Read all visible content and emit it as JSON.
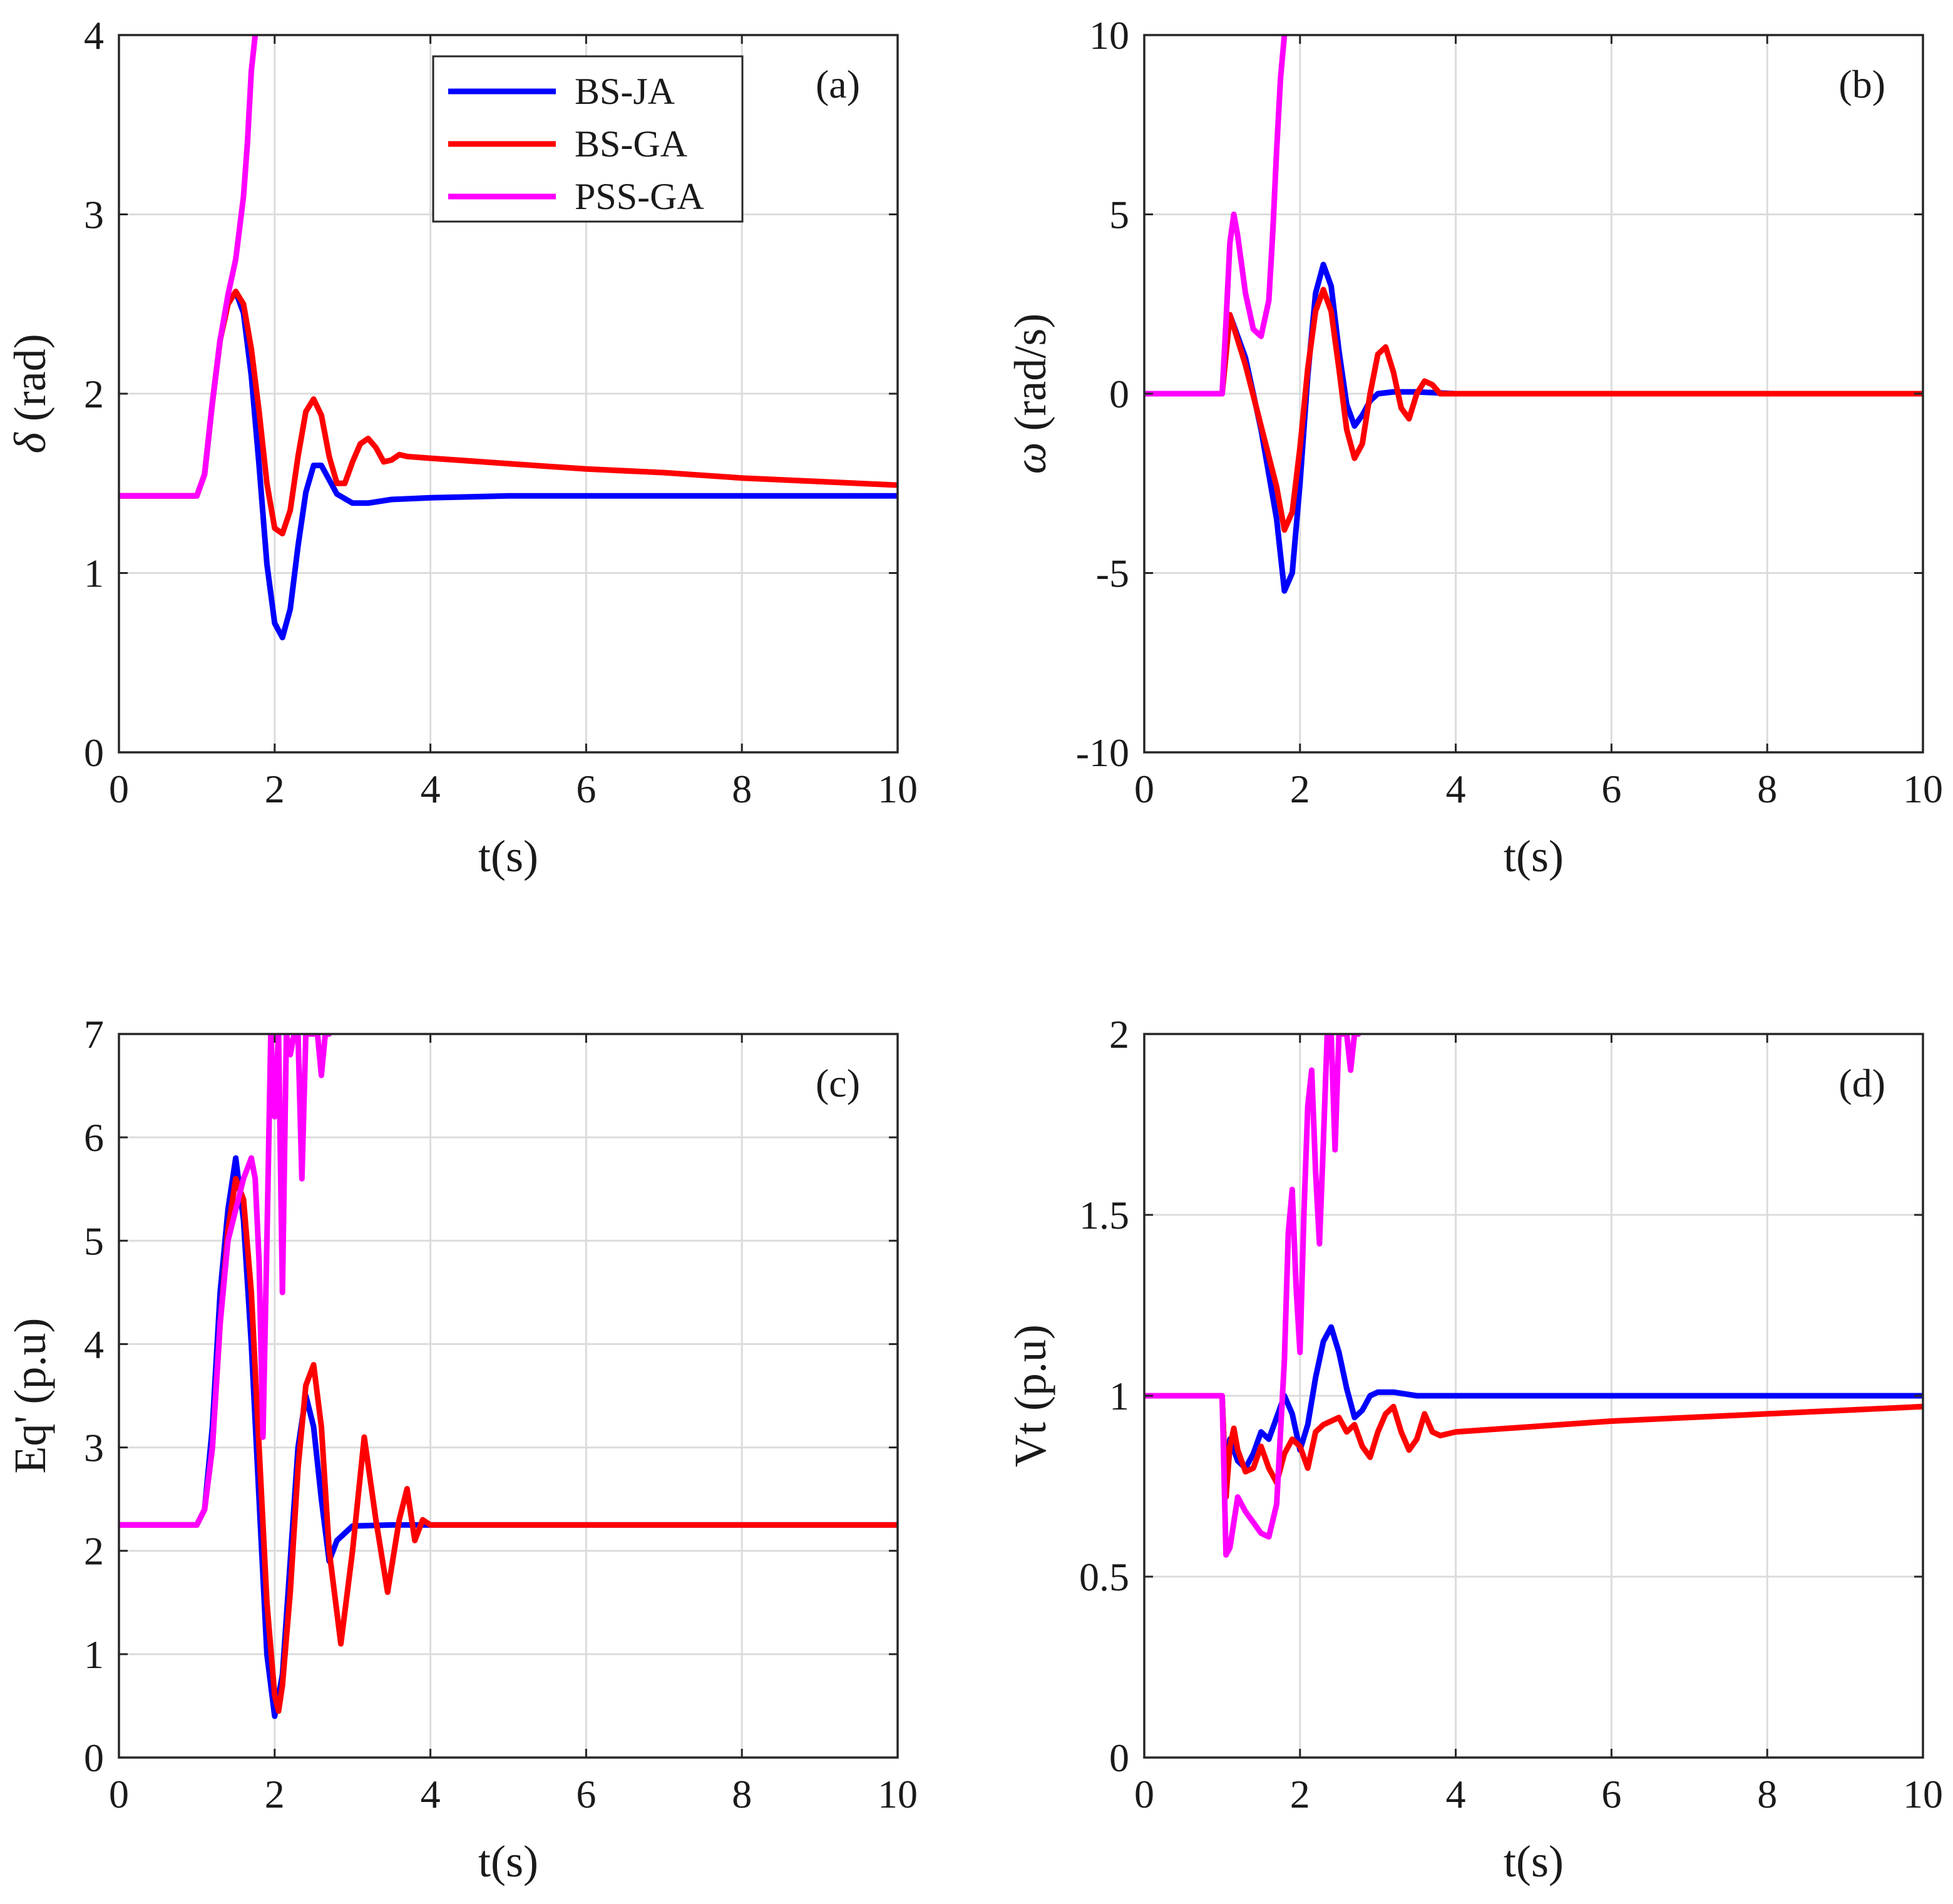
{
  "chart_data": [
    {
      "type": "line",
      "tag": "(a)",
      "xlabel": "t(s)",
      "ylabel_symbol": "δ",
      "ylabel_unit": " (rad)",
      "xlim": [
        0,
        10
      ],
      "ylim": [
        0,
        4
      ],
      "xticks": [
        0,
        2,
        4,
        6,
        8,
        10
      ],
      "yticks": [
        0,
        1,
        2,
        3,
        4
      ],
      "grid": true,
      "legend": {
        "position": "top-center",
        "entries": [
          "BS-JA",
          "BS-GA",
          "PSS-GA"
        ]
      },
      "series": [
        {
          "name": "BS-JA",
          "color": "#0000ff",
          "x": [
            0,
            1,
            1.1,
            1.2,
            1.3,
            1.4,
            1.5,
            1.6,
            1.7,
            1.8,
            1.9,
            2.0,
            2.1,
            2.2,
            2.3,
            2.4,
            2.5,
            2.6,
            2.7,
            2.8,
            3.0,
            3.2,
            3.5,
            4.0,
            5,
            6,
            8,
            10
          ],
          "y": [
            1.43,
            1.43,
            1.55,
            1.95,
            2.3,
            2.5,
            2.57,
            2.45,
            2.1,
            1.6,
            1.05,
            0.72,
            0.64,
            0.8,
            1.15,
            1.45,
            1.6,
            1.6,
            1.52,
            1.44,
            1.39,
            1.39,
            1.41,
            1.42,
            1.43,
            1.43,
            1.43,
            1.43
          ]
        },
        {
          "name": "BS-GA",
          "color": "#ff0000",
          "x": [
            0,
            1,
            1.1,
            1.2,
            1.3,
            1.4,
            1.5,
            1.6,
            1.7,
            1.8,
            1.9,
            2.0,
            2.1,
            2.2,
            2.3,
            2.4,
            2.5,
            2.6,
            2.7,
            2.8,
            2.9,
            3.0,
            3.1,
            3.2,
            3.3,
            3.4,
            3.5,
            3.6,
            3.7,
            4.0,
            5,
            6,
            7,
            8,
            9,
            10
          ],
          "y": [
            1.43,
            1.43,
            1.55,
            1.95,
            2.3,
            2.5,
            2.57,
            2.5,
            2.25,
            1.9,
            1.5,
            1.25,
            1.22,
            1.35,
            1.65,
            1.9,
            1.97,
            1.88,
            1.65,
            1.5,
            1.5,
            1.62,
            1.72,
            1.75,
            1.7,
            1.62,
            1.63,
            1.66,
            1.65,
            1.64,
            1.61,
            1.58,
            1.56,
            1.53,
            1.51,
            1.49
          ]
        },
        {
          "name": "PSS-GA",
          "color": "#ff00ff",
          "x": [
            0,
            1,
            1.1,
            1.2,
            1.3,
            1.4,
            1.5,
            1.6,
            1.65,
            1.7,
            1.75
          ],
          "y": [
            1.43,
            1.43,
            1.55,
            1.95,
            2.3,
            2.55,
            2.75,
            3.1,
            3.4,
            3.8,
            4.0
          ]
        }
      ]
    },
    {
      "type": "line",
      "tag": "(b)",
      "xlabel": "t(s)",
      "ylabel_symbol": "ω",
      "ylabel_unit": " (rad/s)",
      "xlim": [
        0,
        10
      ],
      "ylim": [
        -10,
        10
      ],
      "xticks": [
        0,
        2,
        4,
        6,
        8,
        10
      ],
      "yticks": [
        -10,
        -5,
        0,
        5,
        10
      ],
      "grid": true,
      "series": [
        {
          "name": "BS-JA",
          "color": "#0000ff",
          "x": [
            0,
            1,
            1.1,
            1.3,
            1.5,
            1.7,
            1.8,
            1.9,
            2.0,
            2.1,
            2.2,
            2.3,
            2.4,
            2.5,
            2.6,
            2.7,
            2.8,
            2.9,
            3.0,
            3.2,
            3.5,
            4,
            6,
            8,
            10
          ],
          "y": [
            0,
            0,
            2.2,
            1.0,
            -1.0,
            -3.5,
            -5.5,
            -5.0,
            -2.5,
            0.5,
            2.8,
            3.6,
            3.0,
            1.2,
            -0.3,
            -0.9,
            -0.6,
            -0.2,
            0.0,
            0.05,
            0.05,
            0,
            0,
            0,
            0
          ]
        },
        {
          "name": "BS-GA",
          "color": "#ff0000",
          "x": [
            0,
            1,
            1.1,
            1.3,
            1.5,
            1.7,
            1.8,
            1.9,
            2.0,
            2.1,
            2.2,
            2.3,
            2.4,
            2.5,
            2.6,
            2.7,
            2.8,
            2.9,
            3.0,
            3.1,
            3.2,
            3.3,
            3.4,
            3.5,
            3.6,
            3.7,
            3.8,
            4,
            6,
            8,
            10
          ],
          "y": [
            0,
            0,
            2.2,
            0.8,
            -0.9,
            -2.6,
            -3.8,
            -3.3,
            -1.5,
            0.7,
            2.3,
            2.9,
            2.3,
            0.7,
            -1.0,
            -1.8,
            -1.4,
            0.0,
            1.1,
            1.3,
            0.6,
            -0.4,
            -0.7,
            0.0,
            0.35,
            0.25,
            0.0,
            0,
            0,
            0,
            0
          ]
        },
        {
          "name": "PSS-GA",
          "color": "#ff00ff",
          "x": [
            0,
            1,
            1.05,
            1.1,
            1.15,
            1.2,
            1.3,
            1.4,
            1.5,
            1.6,
            1.65,
            1.7,
            1.75,
            1.8
          ],
          "y": [
            0,
            0,
            2.0,
            4.2,
            5.0,
            4.4,
            2.8,
            1.8,
            1.6,
            2.6,
            4.5,
            6.8,
            8.8,
            10.0
          ]
        }
      ]
    },
    {
      "type": "line",
      "tag": "(c)",
      "xlabel": "t(s)",
      "ylabel_symbol": "",
      "ylabel_unit": "Eq' (p.u)",
      "xlim": [
        0,
        10
      ],
      "ylim": [
        0,
        7
      ],
      "xticks": [
        0,
        2,
        4,
        6,
        8,
        10
      ],
      "yticks": [
        0,
        1,
        2,
        3,
        4,
        5,
        6,
        7
      ],
      "grid": true,
      "series": [
        {
          "name": "BS-JA",
          "color": "#0000ff",
          "x": [
            0,
            1,
            1.1,
            1.2,
            1.3,
            1.4,
            1.5,
            1.6,
            1.7,
            1.8,
            1.9,
            2.0,
            2.1,
            2.2,
            2.3,
            2.4,
            2.5,
            2.6,
            2.7,
            2.8,
            3.0,
            3.5,
            4,
            6,
            8,
            10
          ],
          "y": [
            2.25,
            2.25,
            2.4,
            3.2,
            4.5,
            5.3,
            5.8,
            5.2,
            4.0,
            2.5,
            1.0,
            0.4,
            0.8,
            1.9,
            3.0,
            3.5,
            3.2,
            2.5,
            1.9,
            2.1,
            2.24,
            2.25,
            2.25,
            2.25,
            2.25,
            2.25
          ]
        },
        {
          "name": "BS-GA",
          "color": "#ff0000",
          "x": [
            0,
            1,
            1.1,
            1.2,
            1.3,
            1.4,
            1.5,
            1.6,
            1.7,
            1.8,
            1.9,
            2.0,
            2.05,
            2.1,
            2.2,
            2.3,
            2.4,
            2.5,
            2.6,
            2.7,
            2.85,
            3.0,
            3.15,
            3.3,
            3.45,
            3.6,
            3.7,
            3.8,
            3.9,
            4,
            6,
            8,
            10
          ],
          "y": [
            2.25,
            2.25,
            2.4,
            3.0,
            4.2,
            5.1,
            5.6,
            5.4,
            4.5,
            3.0,
            1.5,
            0.6,
            0.45,
            0.7,
            1.6,
            2.8,
            3.6,
            3.8,
            3.2,
            2.0,
            1.1,
            2.0,
            3.1,
            2.3,
            1.6,
            2.3,
            2.6,
            2.1,
            2.3,
            2.25,
            2.25,
            2.25,
            2.25
          ]
        },
        {
          "name": "PSS-GA",
          "color": "#ff00ff",
          "x": [
            0,
            1,
            1.1,
            1.2,
            1.3,
            1.4,
            1.5,
            1.6,
            1.7,
            1.75,
            1.8,
            1.85,
            1.9,
            1.95,
            2.0,
            2.05,
            2.1,
            2.15,
            2.2,
            2.25,
            2.3,
            2.35,
            2.4,
            2.45,
            2.5,
            2.55,
            2.6,
            2.65,
            2.7
          ],
          "y": [
            2.25,
            2.25,
            2.4,
            3.0,
            4.2,
            5.0,
            5.3,
            5.6,
            5.8,
            5.6,
            4.8,
            3.1,
            5.0,
            7.0,
            6.2,
            7.0,
            4.5,
            7.0,
            6.8,
            7.0,
            7.0,
            5.6,
            7.0,
            7.0,
            7.0,
            7.0,
            6.6,
            7.0,
            7.0
          ]
        }
      ]
    },
    {
      "type": "line",
      "tag": "(d)",
      "xlabel": "t(s)",
      "ylabel_symbol": "",
      "ylabel_unit": "Vt (p.u)",
      "xlim": [
        0,
        10
      ],
      "ylim": [
        0,
        2
      ],
      "xticks": [
        0,
        2,
        4,
        6,
        8,
        10
      ],
      "yticks": [
        0,
        0.5,
        1,
        1.5,
        2
      ],
      "grid": true,
      "series": [
        {
          "name": "BS-JA",
          "color": "#0000ff",
          "x": [
            0,
            1,
            1.05,
            1.1,
            1.2,
            1.3,
            1.4,
            1.5,
            1.6,
            1.7,
            1.8,
            1.9,
            2.0,
            2.1,
            2.2,
            2.3,
            2.4,
            2.5,
            2.6,
            2.7,
            2.8,
            2.9,
            3.0,
            3.2,
            3.5,
            4,
            6,
            8,
            10
          ],
          "y": [
            1.0,
            1.0,
            0.72,
            0.88,
            0.82,
            0.8,
            0.84,
            0.9,
            0.88,
            0.94,
            1.0,
            0.95,
            0.85,
            0.92,
            1.05,
            1.15,
            1.19,
            1.12,
            1.02,
            0.94,
            0.96,
            1.0,
            1.01,
            1.01,
            1.0,
            1.0,
            1.0,
            1.0,
            1.0
          ]
        },
        {
          "name": "BS-GA",
          "color": "#ff0000",
          "x": [
            0,
            1,
            1.05,
            1.1,
            1.15,
            1.2,
            1.3,
            1.4,
            1.5,
            1.6,
            1.7,
            1.8,
            1.9,
            2.0,
            2.1,
            2.2,
            2.3,
            2.4,
            2.5,
            2.6,
            2.7,
            2.8,
            2.9,
            3.0,
            3.1,
            3.2,
            3.3,
            3.4,
            3.5,
            3.6,
            3.7,
            3.8,
            4,
            6,
            8,
            10
          ],
          "y": [
            1.0,
            1.0,
            0.72,
            0.86,
            0.91,
            0.85,
            0.79,
            0.8,
            0.86,
            0.8,
            0.76,
            0.84,
            0.88,
            0.86,
            0.8,
            0.9,
            0.92,
            0.93,
            0.94,
            0.9,
            0.92,
            0.86,
            0.83,
            0.9,
            0.95,
            0.97,
            0.9,
            0.85,
            0.88,
            0.95,
            0.9,
            0.89,
            0.9,
            0.93,
            0.95,
            0.97
          ]
        },
        {
          "name": "PSS-GA",
          "color": "#ff00ff",
          "x": [
            0,
            1,
            1.05,
            1.1,
            1.2,
            1.3,
            1.4,
            1.5,
            1.6,
            1.7,
            1.75,
            1.8,
            1.85,
            1.9,
            1.95,
            2.0,
            2.05,
            2.1,
            2.15,
            2.2,
            2.25,
            2.3,
            2.35,
            2.4,
            2.45,
            2.5,
            2.55,
            2.6,
            2.65,
            2.7,
            2.75
          ],
          "y": [
            1.0,
            1.0,
            0.56,
            0.58,
            0.72,
            0.68,
            0.65,
            0.62,
            0.61,
            0.7,
            0.9,
            1.1,
            1.45,
            1.57,
            1.3,
            1.12,
            1.5,
            1.8,
            1.9,
            1.62,
            1.42,
            1.7,
            2.0,
            2.0,
            1.68,
            2.0,
            2.0,
            2.0,
            1.9,
            2.0,
            2.0
          ]
        }
      ]
    }
  ]
}
